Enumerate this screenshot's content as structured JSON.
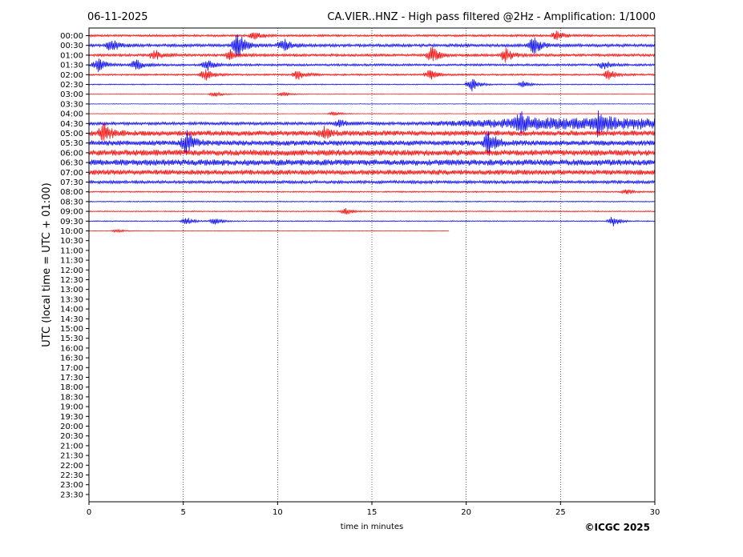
{
  "header": {
    "date": "06-11-2025",
    "title": "CA.VIER..HNZ - High pass filtered @2Hz - Amplification: 1/1000"
  },
  "footer": {
    "copyright": "©ICGC 2025"
  },
  "chart_data": {
    "type": "line",
    "title": "CA.VIER..HNZ - High pass filtered @2Hz - Amplification: 1/1000",
    "xlabel": "time in minutes",
    "ylabel": "UTC (local time = UTC + 01:00)",
    "xlim": [
      0,
      30
    ],
    "x_ticks": [
      0,
      5,
      10,
      15,
      20,
      25,
      30
    ],
    "x_tick_labels": [
      "0",
      "5",
      "10",
      "15",
      "20",
      "25",
      "30"
    ],
    "vertical_gridlines_at": [
      5,
      10,
      15,
      20,
      25
    ],
    "grid": "dotted vertical",
    "row_labels": [
      "00:00",
      "00:30",
      "01:00",
      "01:30",
      "02:00",
      "02:30",
      "03:00",
      "03:30",
      "04:00",
      "04:30",
      "05:00",
      "05:30",
      "06:00",
      "06:30",
      "07:00",
      "07:30",
      "08:00",
      "08:30",
      "09:00",
      "09:30",
      "10:00",
      "10:30",
      "11:00",
      "11:30",
      "12:00",
      "12:30",
      "13:00",
      "13:30",
      "14:00",
      "14:30",
      "15:00",
      "15:30",
      "16:00",
      "16:30",
      "17:00",
      "17:30",
      "18:00",
      "18:30",
      "19:00",
      "19:30",
      "20:00",
      "20:30",
      "21:00",
      "21:30",
      "22:00",
      "22:30",
      "23:00",
      "23:30"
    ],
    "series_colors": [
      "#ff0000",
      "#0000ff"
    ],
    "trace_amplitude": [
      0.25,
      0.35,
      0.3,
      0.25,
      0.2,
      0.12,
      0.06,
      0.06,
      0.06,
      0.35,
      0.6,
      0.6,
      0.7,
      0.7,
      0.6,
      0.35,
      0.15,
      0.12,
      0.12,
      0.12,
      0.06
    ],
    "trace_end_minutes": [
      30,
      30,
      30,
      30,
      30,
      30,
      30,
      30,
      30,
      30,
      30,
      30,
      30,
      30,
      30,
      30,
      30,
      30,
      30,
      30,
      19.1
    ],
    "events": [
      {
        "row": 0,
        "minute": 24.8,
        "amp": 0.5
      },
      {
        "row": 0,
        "minute": 8.8,
        "amp": 0.4
      },
      {
        "row": 1,
        "minute": 7.9,
        "amp": 1.6
      },
      {
        "row": 1,
        "minute": 10.3,
        "amp": 0.8
      },
      {
        "row": 1,
        "minute": 23.6,
        "amp": 1.0
      },
      {
        "row": 1,
        "minute": 1.2,
        "amp": 0.7
      },
      {
        "row": 2,
        "minute": 18.2,
        "amp": 0.9
      },
      {
        "row": 2,
        "minute": 22.1,
        "amp": 0.8
      },
      {
        "row": 2,
        "minute": 3.5,
        "amp": 0.6
      },
      {
        "row": 2,
        "minute": 7.5,
        "amp": 0.6
      },
      {
        "row": 3,
        "minute": 0.5,
        "amp": 0.8
      },
      {
        "row": 3,
        "minute": 2.5,
        "amp": 0.6
      },
      {
        "row": 3,
        "minute": 6.3,
        "amp": 0.6
      },
      {
        "row": 3,
        "minute": 27.3,
        "amp": 0.5
      },
      {
        "row": 4,
        "minute": 6.2,
        "amp": 0.7
      },
      {
        "row": 4,
        "minute": 11.1,
        "amp": 0.6
      },
      {
        "row": 4,
        "minute": 18.1,
        "amp": 0.6
      },
      {
        "row": 4,
        "minute": 27.6,
        "amp": 0.7
      },
      {
        "row": 5,
        "minute": 20.3,
        "amp": 0.8
      },
      {
        "row": 5,
        "minute": 23.0,
        "amp": 0.4
      },
      {
        "row": 6,
        "minute": 6.7,
        "amp": 0.3
      },
      {
        "row": 6,
        "minute": 10.3,
        "amp": 0.3
      },
      {
        "row": 8,
        "minute": 13.0,
        "amp": 0.3
      },
      {
        "row": 9,
        "minute": 13.3,
        "amp": 0.4
      },
      {
        "row": 9,
        "minute": 22.9,
        "amp": 1.0
      },
      {
        "row": 9,
        "minute": 27.0,
        "amp": 1.0
      },
      {
        "row": 10,
        "minute": 0.8,
        "amp": 1.0
      },
      {
        "row": 10,
        "minute": 12.5,
        "amp": 0.6
      },
      {
        "row": 11,
        "minute": 5.2,
        "amp": 1.2
      },
      {
        "row": 11,
        "minute": 21.2,
        "amp": 1.4
      },
      {
        "row": 16,
        "minute": 28.5,
        "amp": 0.3
      },
      {
        "row": 18,
        "minute": 13.6,
        "amp": 0.4
      },
      {
        "row": 19,
        "minute": 5.2,
        "amp": 0.4
      },
      {
        "row": 19,
        "minute": 6.7,
        "amp": 0.4
      },
      {
        "row": 19,
        "minute": 27.8,
        "amp": 0.6
      },
      {
        "row": 20,
        "minute": 1.5,
        "amp": 0.2
      }
    ]
  }
}
